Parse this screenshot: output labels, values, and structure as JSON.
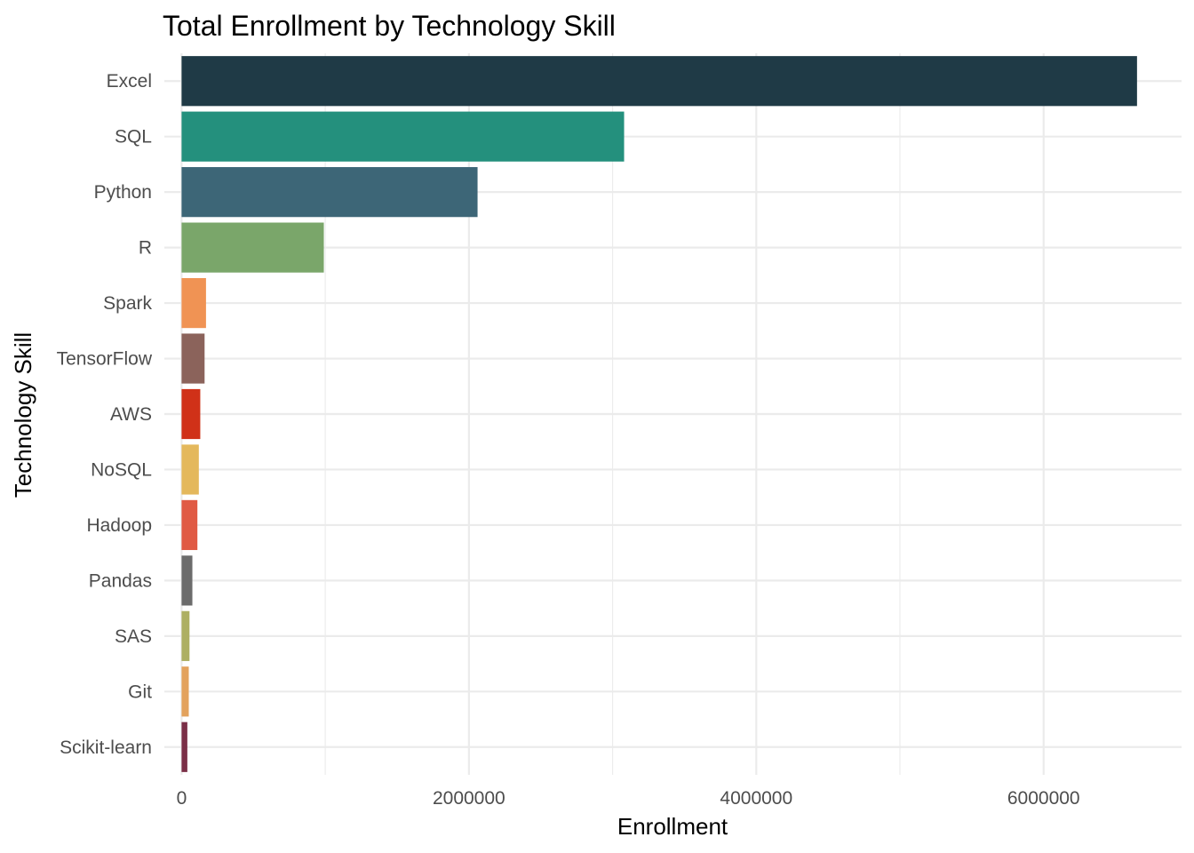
{
  "chart_data": {
    "type": "bar",
    "orientation": "horizontal",
    "title": "Total Enrollment by Technology Skill",
    "xlabel": "Enrollment",
    "ylabel": "Technology Skill",
    "xlim": [
      -120000,
      6960000
    ],
    "x_ticks": [
      0,
      2000000,
      4000000,
      6000000
    ],
    "x_tick_labels": [
      "0",
      "2000000",
      "4000000",
      "6000000"
    ],
    "grid": true,
    "legend": "none",
    "categories": [
      "Excel",
      "SQL",
      "Python",
      "R",
      "Spark",
      "TensorFlow",
      "AWS",
      "NoSQL",
      "Hadoop",
      "Pandas",
      "SAS",
      "Git",
      "Scikit-learn"
    ],
    "values": [
      6650000,
      3080000,
      2060000,
      990000,
      170000,
      160000,
      130000,
      120000,
      110000,
      75000,
      55000,
      50000,
      40000
    ],
    "colors": [
      "#1f3a46",
      "#24907d",
      "#3d6677",
      "#7aa66a",
      "#f09354",
      "#8b635b",
      "#d03118",
      "#e4b85c",
      "#e05a44",
      "#6c6c6c",
      "#adaf63",
      "#e3a25d",
      "#7b2f47"
    ]
  }
}
